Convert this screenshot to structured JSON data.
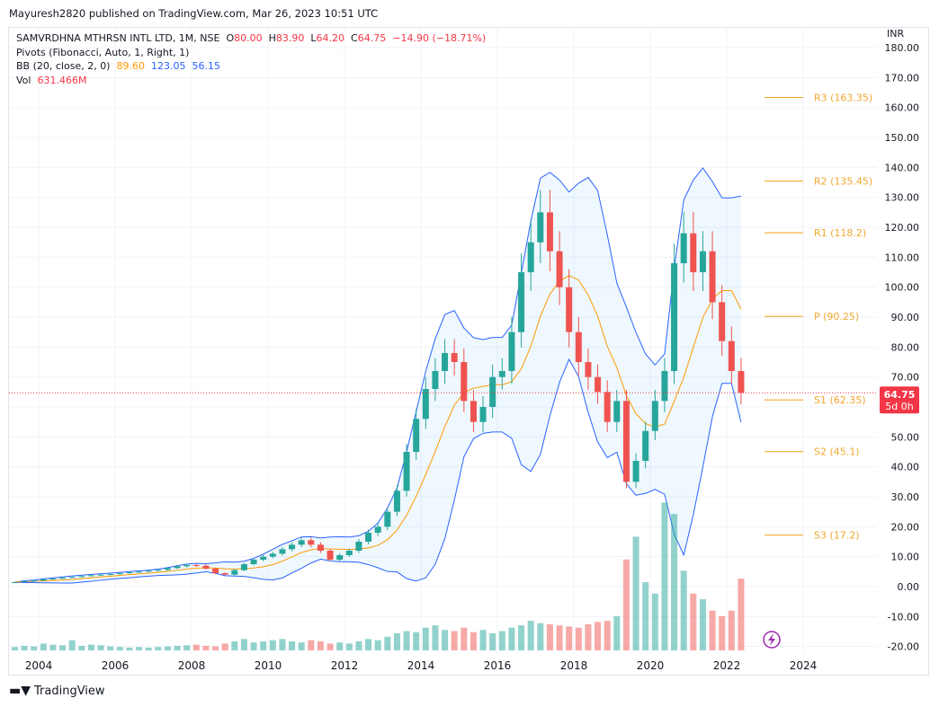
{
  "header": {
    "published": "Mayuresh2820 published on TradingView.com, Mar 26, 2023 10:51 UTC"
  },
  "legend": {
    "symbol": "SAMVRDHNA MTHRSN INTL LTD, 1M, NSE",
    "o_label": "O",
    "o": "80.00",
    "h_label": "H",
    "h": "83.90",
    "l_label": "L",
    "l": "64.20",
    "c_label": "C",
    "c": "64.75",
    "change": "−14.90 (−18.71%)",
    "pivots": "Pivots (Fibonacci, Auto, 1, Right, 1)",
    "bb": "BB (20, close, 2, 0)",
    "bb_basis": "89.60",
    "bb_upper": "123.05",
    "bb_lower": "56.15",
    "vol": "Vol",
    "vol_value": "631.466M"
  },
  "currency": "INR",
  "last_price": {
    "value": "64.75",
    "countdown": "5d 0h",
    "color": "#f23645"
  },
  "footer": {
    "brand": "TradingView"
  },
  "colors": {
    "up": "#26a69a",
    "down": "#ef5350",
    "bb_basis": "#ff9800",
    "bb_band": "#2962ff",
    "pivot": "#f0a830"
  },
  "chart_data": {
    "type": "candlestick",
    "interval": "quarterly approximation of monthly chart",
    "start": "2003 Q2",
    "closes": [
      1.5,
      1.8,
      2.0,
      2.4,
      2.7,
      3.0,
      3.2,
      3.5,
      3.8,
      4.0,
      4.2,
      4.5,
      4.8,
      5.0,
      5.3,
      5.6,
      6.2,
      6.8,
      7.2,
      7.0,
      6.0,
      4.5,
      4.0,
      5.5,
      7.5,
      9.0,
      10.0,
      11.0,
      12.5,
      14.0,
      15.5,
      14.0,
      12.0,
      9.0,
      10.5,
      12.0,
      15.0,
      18.0,
      20.0,
      25.0,
      32.0,
      45.0,
      56.0,
      66.0,
      72.0,
      78.0,
      75.0,
      62.0,
      55.0,
      60.0,
      70.0,
      72.0,
      85.0,
      105.0,
      115.0,
      125.0,
      112.0,
      100.0,
      85.0,
      75.0,
      70.0,
      65.0,
      55.0,
      62.0,
      35.0,
      42.0,
      52.0,
      62.0,
      72.0,
      108.0,
      118.0,
      105.0,
      112.0,
      95.0,
      82.0,
      72.0,
      64.75
    ],
    "volumes_m": [
      30,
      40,
      35,
      60,
      50,
      45,
      90,
      40,
      50,
      45,
      35,
      30,
      25,
      30,
      25,
      30,
      35,
      40,
      45,
      50,
      40,
      35,
      60,
      80,
      100,
      70,
      80,
      90,
      100,
      80,
      70,
      90,
      80,
      60,
      70,
      60,
      80,
      100,
      90,
      120,
      150,
      170,
      160,
      200,
      220,
      180,
      170,
      200,
      160,
      180,
      150,
      170,
      200,
      220,
      260,
      240,
      230,
      220,
      210,
      200,
      230,
      250,
      260,
      300,
      800,
      1000,
      600,
      500,
      1300,
      1200,
      700,
      500,
      450,
      350,
      300,
      350,
      631.466
    ],
    "y_ticks": [
      -20,
      -10,
      0,
      10,
      20,
      30,
      40,
      50,
      60,
      70,
      80,
      90,
      100,
      110,
      120,
      130,
      140,
      150,
      160,
      170,
      180
    ],
    "x_ticks": [
      "2004",
      "2006",
      "2008",
      "2010",
      "2012",
      "2014",
      "2016",
      "2018",
      "2020",
      "2022",
      "2024"
    ],
    "pivots": [
      {
        "label": "R3",
        "value": 163.35
      },
      {
        "label": "R2",
        "value": 135.45
      },
      {
        "label": "R1",
        "value": 118.2
      },
      {
        "label": "P",
        "value": 90.25
      },
      {
        "label": "S1",
        "value": 62.35
      },
      {
        "label": "S2",
        "value": 45.1
      },
      {
        "label": "S3",
        "value": 17.2
      }
    ],
    "ylim": [
      -20,
      180
    ]
  }
}
